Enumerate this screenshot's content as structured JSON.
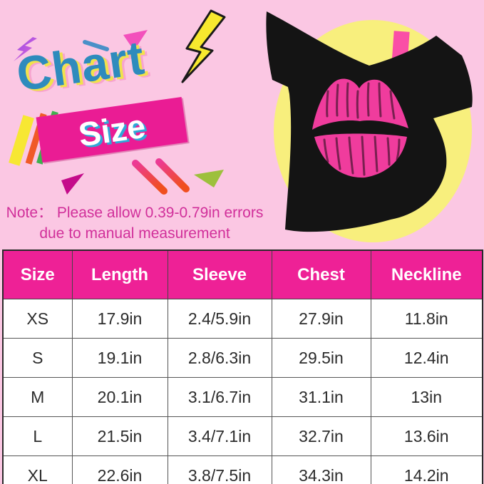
{
  "logo": {
    "chart_label": "Chart",
    "size_label": "Size"
  },
  "note": {
    "line1": "Note：  Please allow 0.39-0.79in errors",
    "line2": "due to manual measurement"
  },
  "product_image": {
    "description": "black off-the-shoulder t-shirt with pink lips print on yellow circle",
    "tag": "pink hanger tag"
  },
  "chart_data": {
    "type": "table",
    "title": "Size Chart",
    "columns": [
      "Size",
      "Length",
      "Sleeve",
      "Chest",
      "Neckline"
    ],
    "rows": [
      [
        "XS",
        "17.9in",
        "2.4/5.9in",
        "27.9in",
        "11.8in"
      ],
      [
        "S",
        "19.1in",
        "2.8/6.3in",
        "29.5in",
        "12.4in"
      ],
      [
        "M",
        "20.1in",
        "3.1/6.7in",
        "31.1in",
        "13in"
      ],
      [
        "L",
        "21.5in",
        "3.4/7.1in",
        "32.7in",
        "13.6in"
      ],
      [
        "XL",
        "22.6in",
        "3.8/7.5in",
        "34.3in",
        "14.2in"
      ]
    ],
    "note": "Please allow 0.39-0.79in errors due to manual measurement"
  },
  "colors": {
    "background_pink": "#fbc7e3",
    "header_magenta": "#ee2196",
    "banner_magenta": "#ea1c94",
    "logo_blue": "#2e8bbd",
    "logo_shadow_yellow": "#f1e24c",
    "note_pink": "#d12f9a",
    "circle_yellow": "#f8ef7d",
    "shirt_black": "#141414",
    "lips_pink": "#f03c9d",
    "tag_pink": "#fa4fa6"
  }
}
